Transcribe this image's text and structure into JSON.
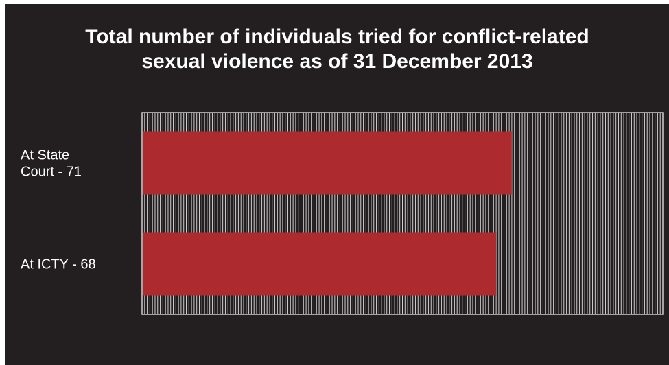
{
  "chart_data": {
    "type": "bar",
    "orientation": "horizontal",
    "title": "Total number of individuals tried for conflict-related\nsexual violence as of 31 December 2013",
    "categories": [
      "At State\nCourt - 71",
      "At ICTY - 68"
    ],
    "values": [
      71,
      68
    ],
    "xlim": [
      0,
      100
    ],
    "grid": true,
    "colors": {
      "background": "#231f20",
      "bar": "#ad2a2e",
      "grid": "#cfcfcf",
      "text": "#ffffff"
    }
  }
}
